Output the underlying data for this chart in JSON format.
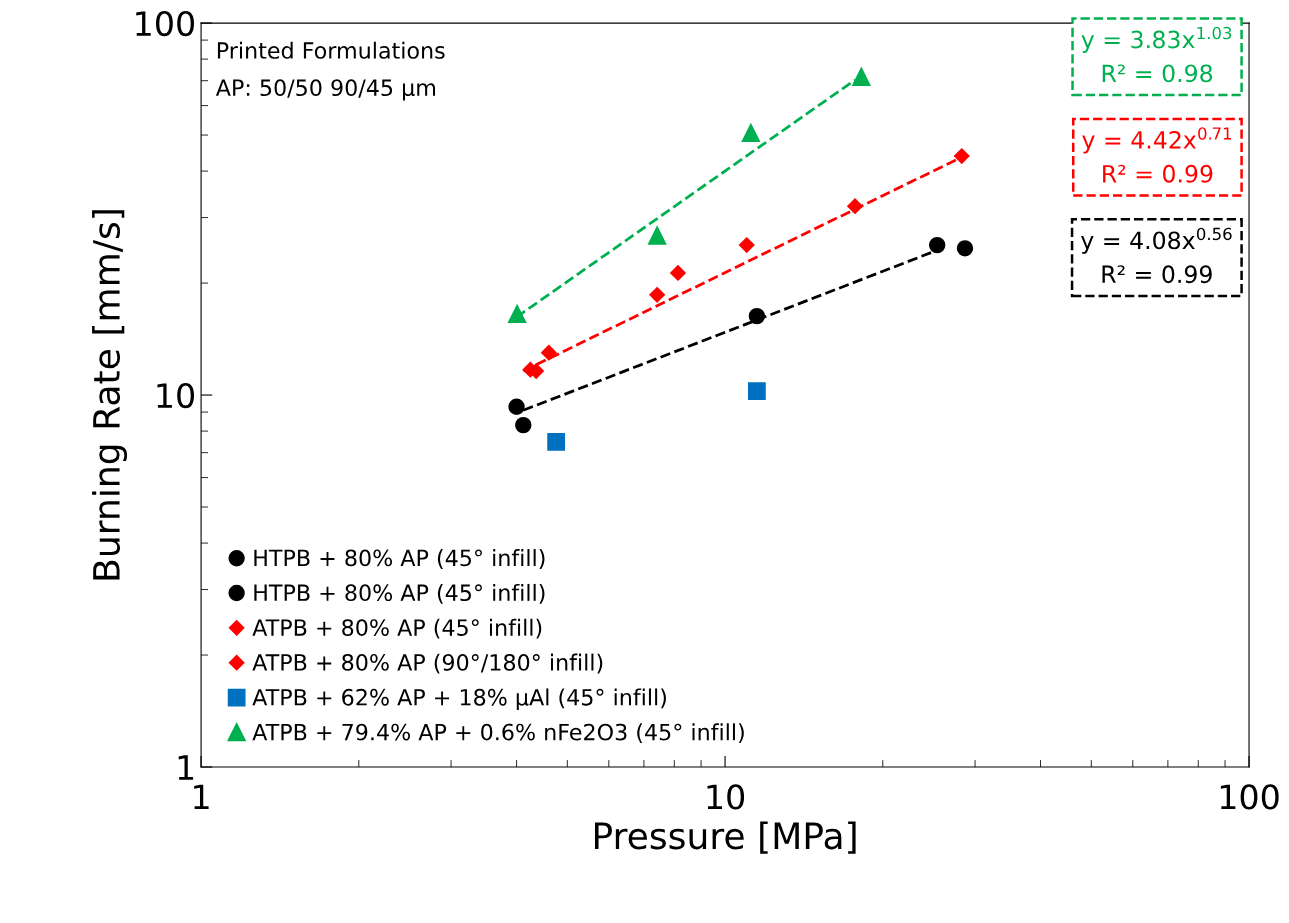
{
  "chart_data": {
    "type": "scatter",
    "xlabel": "Pressure [MPa]",
    "ylabel": "Burning Rate [mm/s]",
    "annotations": [
      "Printed Formulations",
      "AP: 50/50 90/45 µm"
    ],
    "log": "xy",
    "xlim": [
      1,
      100
    ],
    "ylim": [
      1,
      100
    ],
    "xticks": [
      1,
      10,
      100
    ],
    "yticks": [
      1,
      10,
      100
    ],
    "grid": false,
    "legend": "bottom left",
    "series": [
      {
        "name": "HTPB + 80% AP (45° infill)",
        "color": "#000000",
        "marker": "circle",
        "x": [
          4.12,
          11.5,
          28.7
        ],
        "values": [
          8.3,
          16.3,
          24.8
        ]
      },
      {
        "name": "HTPB + 80% AP (45° infill)",
        "color": "#000000",
        "marker": "circle",
        "x": [
          4.0,
          25.4
        ],
        "values": [
          9.3,
          25.3
        ]
      },
      {
        "name": "ATPB + 80% AP (45° infill)",
        "color": "#ff0000",
        "marker": "diamond",
        "x": [
          4.36,
          4.61,
          7.42,
          11.0,
          17.7,
          28.3
        ],
        "values": [
          11.6,
          13.0,
          18.6,
          25.3,
          32.2,
          43.9
        ]
      },
      {
        "name": "ATPB + 80% AP (90°/180° infill)",
        "color": "#ff0000",
        "marker": "diamond",
        "x": [
          4.25,
          8.13
        ],
        "values": [
          11.7,
          21.3
        ]
      },
      {
        "name": "ATPB + 62% AP + 18% µAl (45° infill)",
        "color": "#0070c0",
        "marker": "square",
        "x": [
          4.76,
          11.5
        ],
        "values": [
          7.48,
          10.25
        ]
      },
      {
        "name": "ATPB + 79.4% AP + 0.6% nFe2O3 (45° infill)",
        "color": "#00b050",
        "marker": "triangle",
        "x": [
          4.01,
          7.42,
          11.2,
          18.2
        ],
        "values": [
          16.5,
          26.8,
          50.6,
          71.6
        ]
      },
      {
        "type": "line",
        "name": "y = 3.83x$^{1.03}$\nR² = 0.98",
        "color": "#00b050",
        "line_style": "dashed",
        "x": [
          4.0,
          17.7
        ],
        "values": [
          16.2,
          70.3
        ]
      },
      {
        "type": "line",
        "name": "y = 4.42x$^{0.71}$\nR² = 0.99",
        "color": "#ff0000",
        "line_style": "dashed",
        "x": [
          4.12,
          28.1
        ],
        "values": [
          11.6,
          43.4
        ]
      },
      {
        "type": "line",
        "name": "y = 4.08x$^{0.56}$\nR² = 0.99",
        "color": "#000000",
        "line_style": "dashed",
        "x": [
          4.12,
          25.2
        ],
        "values": [
          9.1,
          24.4
        ]
      }
    ]
  }
}
